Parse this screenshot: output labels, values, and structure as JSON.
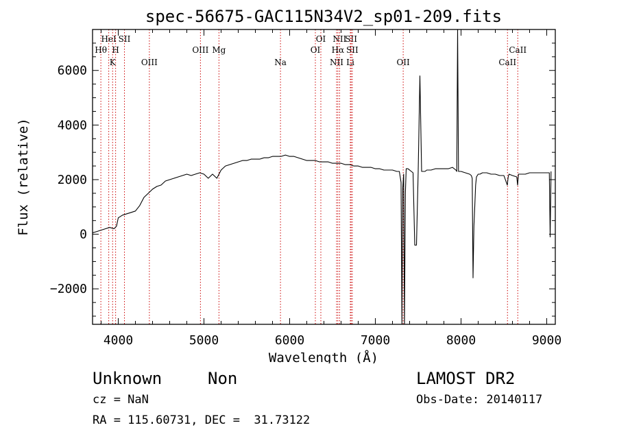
{
  "chart_data": {
    "type": "line",
    "title": "spec-56675-GAC115N34V2_sp01-209.fits",
    "xlabel": "Wavelength (Å)",
    "ylabel": "Flux (relative)",
    "xlim": [
      3700,
      9100
    ],
    "ylim": [
      -3300,
      7500
    ],
    "xticks": [
      4000,
      5000,
      6000,
      7000,
      8000,
      9000
    ],
    "yticks": [
      -2000,
      0,
      2000,
      4000,
      6000
    ],
    "grid": false,
    "spectrum": {
      "x": [
        3700,
        3750,
        3800,
        3850,
        3900,
        3950,
        3980,
        4000,
        4050,
        4100,
        4150,
        4200,
        4250,
        4300,
        4350,
        4400,
        4450,
        4500,
        4550,
        4600,
        4650,
        4700,
        4750,
        4800,
        4850,
        4900,
        4950,
        5000,
        5050,
        5100,
        5150,
        5200,
        5250,
        5300,
        5350,
        5400,
        5450,
        5500,
        5550,
        5600,
        5650,
        5700,
        5750,
        5800,
        5850,
        5900,
        5950,
        6000,
        6050,
        6100,
        6150,
        6200,
        6250,
        6300,
        6350,
        6400,
        6450,
        6500,
        6550,
        6600,
        6650,
        6700,
        6750,
        6800,
        6850,
        6900,
        6950,
        7000,
        7050,
        7100,
        7150,
        7200,
        7250,
        7280,
        7300,
        7310,
        7320,
        7330,
        7340,
        7350,
        7360,
        7370,
        7380,
        7400,
        7420,
        7440,
        7460,
        7480,
        7500,
        7520,
        7540,
        7550,
        7560,
        7580,
        7600,
        7650,
        7700,
        7750,
        7800,
        7850,
        7900,
        7940,
        7950,
        7960,
        7970,
        7980,
        7990,
        8000,
        8050,
        8100,
        8120,
        8130,
        8140,
        8150,
        8160,
        8170,
        8180,
        8200,
        8220,
        8250,
        8300,
        8350,
        8400,
        8450,
        8500,
        8540,
        8550,
        8560,
        8600,
        8650,
        8660,
        8670,
        8700,
        8750,
        8800,
        8850,
        8900,
        8950,
        9000,
        9030,
        9040,
        9050
      ],
      "y": [
        50,
        100,
        150,
        200,
        250,
        200,
        300,
        600,
        700,
        750,
        800,
        850,
        1050,
        1350,
        1500,
        1650,
        1750,
        1800,
        1950,
        2000,
        2050,
        2100,
        2150,
        2200,
        2150,
        2200,
        2250,
        2200,
        2050,
        2200,
        2050,
        2350,
        2500,
        2550,
        2600,
        2650,
        2700,
        2700,
        2750,
        2750,
        2750,
        2800,
        2800,
        2850,
        2850,
        2850,
        2900,
        2850,
        2850,
        2800,
        2750,
        2700,
        2700,
        2700,
        2650,
        2650,
        2650,
        2600,
        2600,
        2600,
        2550,
        2550,
        2500,
        2500,
        2450,
        2450,
        2450,
        2400,
        2400,
        2350,
        2350,
        2350,
        2300,
        2300,
        1900,
        -3300,
        1700,
        2200,
        -3300,
        1500,
        2400,
        2400,
        2400,
        2350,
        2300,
        2250,
        -400,
        -400,
        2300,
        5800,
        2300,
        2300,
        2300,
        2300,
        2350,
        2350,
        2400,
        2400,
        2400,
        2400,
        2450,
        2350,
        2300,
        7500,
        2300,
        2300,
        2300,
        2300,
        2250,
        2200,
        2150,
        2050,
        -1600,
        300,
        1000,
        1800,
        2100,
        2200,
        2200,
        2250,
        2250,
        2200,
        2200,
        2150,
        2150,
        1800,
        2100,
        2200,
        2150,
        2100,
        1800,
        2200,
        2200,
        2200,
        2250,
        2250,
        2250,
        2250,
        2250,
        2250,
        -100,
        2300
      ]
    },
    "line_markers": [
      {
        "label": "Hθ",
        "x": 3797,
        "row": 3
      },
      {
        "label": "HeI",
        "x": 3889,
        "row": 1
      },
      {
        "label": "K",
        "x": 3934,
        "row": 4
      },
      {
        "label": "H",
        "x": 3969,
        "row": 3
      },
      {
        "label": "SII",
        "x": 4072,
        "row": 1
      },
      {
        "label": "OIII",
        "x": 4363,
        "row": 4
      },
      {
        "label": "OIII",
        "x": 4959,
        "row": 3
      },
      {
        "label": "Mg",
        "x": 5175,
        "row": 2
      },
      {
        "label": "Na",
        "x": 5893,
        "row": 4
      },
      {
        "label": "OI",
        "x": 6300,
        "row": 3
      },
      {
        "label": "OI",
        "x": 6364,
        "row": 1
      },
      {
        "label": "NII",
        "x": 6548,
        "row": 4
      },
      {
        "label": "NII",
        "x": 6583,
        "row": 1
      },
      {
        "label": "Hα",
        "x": 6563,
        "row": 3
      },
      {
        "label": "SII",
        "x": 6717,
        "row": 1
      },
      {
        "label": "SII",
        "x": 6731,
        "row": 3
      },
      {
        "label": "Li",
        "x": 6708,
        "row": 4
      },
      {
        "label": "OII",
        "x": 7325,
        "row": 4
      },
      {
        "label": "CaII",
        "x": 8542,
        "row": 4
      },
      {
        "label": "CaII",
        "x": 8662,
        "row": 3
      }
    ]
  },
  "footer": {
    "class_label": "Unknown",
    "subclass_label": "Non",
    "survey": "LAMOST DR2",
    "cz": "cz = NaN",
    "obs_date": "Obs-Date: 20140117",
    "coords": "RA = 115.60731, DEC =  31.73122"
  },
  "colors": {
    "axis": "#000000",
    "spectrum": "#000000",
    "marker_line": "#cc0000"
  }
}
